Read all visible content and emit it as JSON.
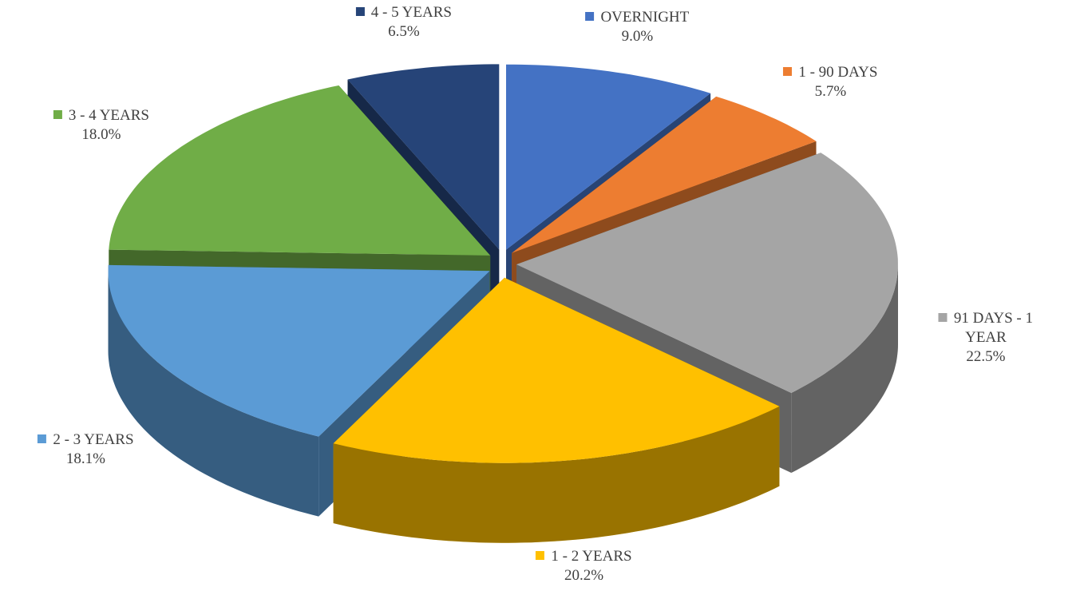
{
  "chart_data": {
    "type": "pie",
    "categories": [
      "OVERNIGHT",
      "1 - 90 DAYS",
      "91 DAYS - 1 YEAR",
      "1 - 2 YEARS",
      "2 - 3 YEARS",
      "3 - 4 YEARS",
      "4 - 5 YEARS"
    ],
    "values": [
      9.0,
      5.7,
      22.5,
      20.2,
      18.1,
      18.0,
      6.5
    ],
    "value_labels": [
      "9.0%",
      "5.7%",
      "22.5%",
      "20.2%",
      "18.1%",
      "18.0%",
      "6.5%"
    ],
    "colors": [
      "#4472c4",
      "#ed7d31",
      "#a5a5a5",
      "#ffc000",
      "#5b9bd5",
      "#70ad47",
      "#264478"
    ]
  }
}
